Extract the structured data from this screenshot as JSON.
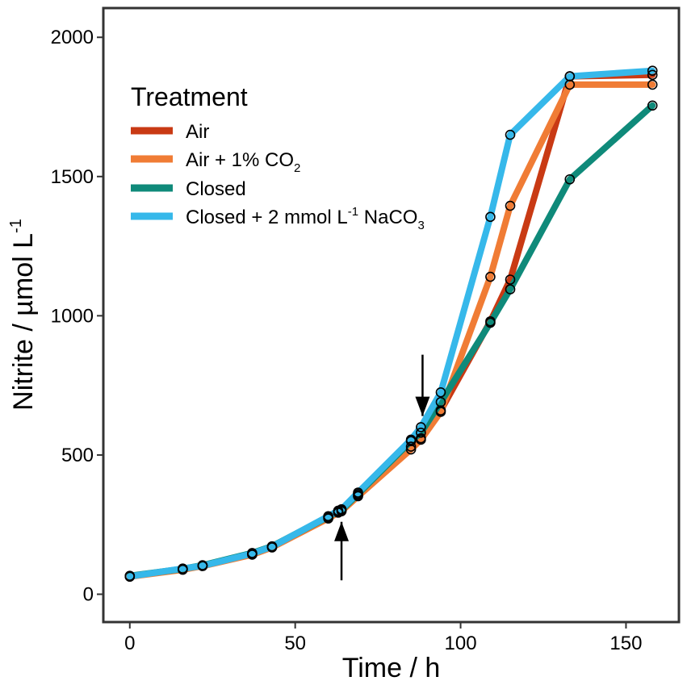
{
  "chart_data": {
    "type": "line",
    "xlabel": "Time / h",
    "ylabel_main": "Nitrite / µmol L",
    "ylabel_sup": "-1",
    "xlim": [
      -8,
      166
    ],
    "ylim": [
      -100,
      2105
    ],
    "xticks": [
      0,
      50,
      100,
      150
    ],
    "yticks": [
      0,
      500,
      1000,
      1500,
      2000
    ],
    "legend": {
      "title": "Treatment",
      "position": "top-left",
      "entries": [
        {
          "label": "Air",
          "sup": "",
          "sub": "",
          "suffix": ""
        },
        {
          "label": "Air + 1% CO",
          "sup": "",
          "sub": "2",
          "suffix": ""
        },
        {
          "label": "Closed",
          "sup": "",
          "sub": "",
          "suffix": ""
        },
        {
          "label": "Closed + 2 mmol L",
          "sup": "-1",
          "sub": "",
          "suffix": " NaCO",
          "suffix_sub": "3"
        }
      ]
    },
    "arrows": [
      {
        "x": 64,
        "direction": "up",
        "y_start": 50,
        "y_end": 260
      },
      {
        "x": 88.5,
        "direction": "down",
        "y_start": 860,
        "y_end": 640
      }
    ],
    "series": [
      {
        "name": "Air",
        "color": "#c93a14",
        "x": [
          0,
          16,
          22,
          37,
          43,
          60,
          63,
          64,
          69,
          85,
          88,
          94,
          109,
          115,
          133,
          158
        ],
        "y": [
          65,
          90,
          103,
          145,
          170,
          275,
          295,
          300,
          355,
          530,
          560,
          660,
          980,
          1130,
          1860,
          1865
        ]
      },
      {
        "name": "Air + 1% CO2",
        "color": "#f07c35",
        "x": [
          0,
          16,
          22,
          37,
          43,
          60,
          63,
          64,
          69,
          85,
          88,
          94,
          109,
          115,
          133,
          158
        ],
        "y": [
          63,
          88,
          101,
          142,
          168,
          272,
          293,
          298,
          352,
          520,
          555,
          655,
          1140,
          1395,
          1830,
          1830
        ]
      },
      {
        "name": "Closed",
        "color": "#0f8a7a",
        "x": [
          0,
          16,
          22,
          37,
          43,
          60,
          63,
          64,
          69,
          85,
          88,
          94,
          109,
          115,
          133,
          158
        ],
        "y": [
          66,
          91,
          104,
          148,
          172,
          278,
          298,
          302,
          360,
          550,
          580,
          690,
          975,
          1095,
          1490,
          1755
        ]
      },
      {
        "name": "Closed + 2 mmol L-1 NaCO3",
        "color": "#36b8ea",
        "x": [
          0,
          16,
          22,
          37,
          43,
          60,
          63,
          64,
          69,
          85,
          88,
          94,
          109,
          115,
          133,
          158
        ],
        "y": [
          64,
          92,
          102,
          146,
          171,
          280,
          300,
          305,
          365,
          555,
          600,
          725,
          1355,
          1650,
          1860,
          1880
        ]
      }
    ]
  }
}
